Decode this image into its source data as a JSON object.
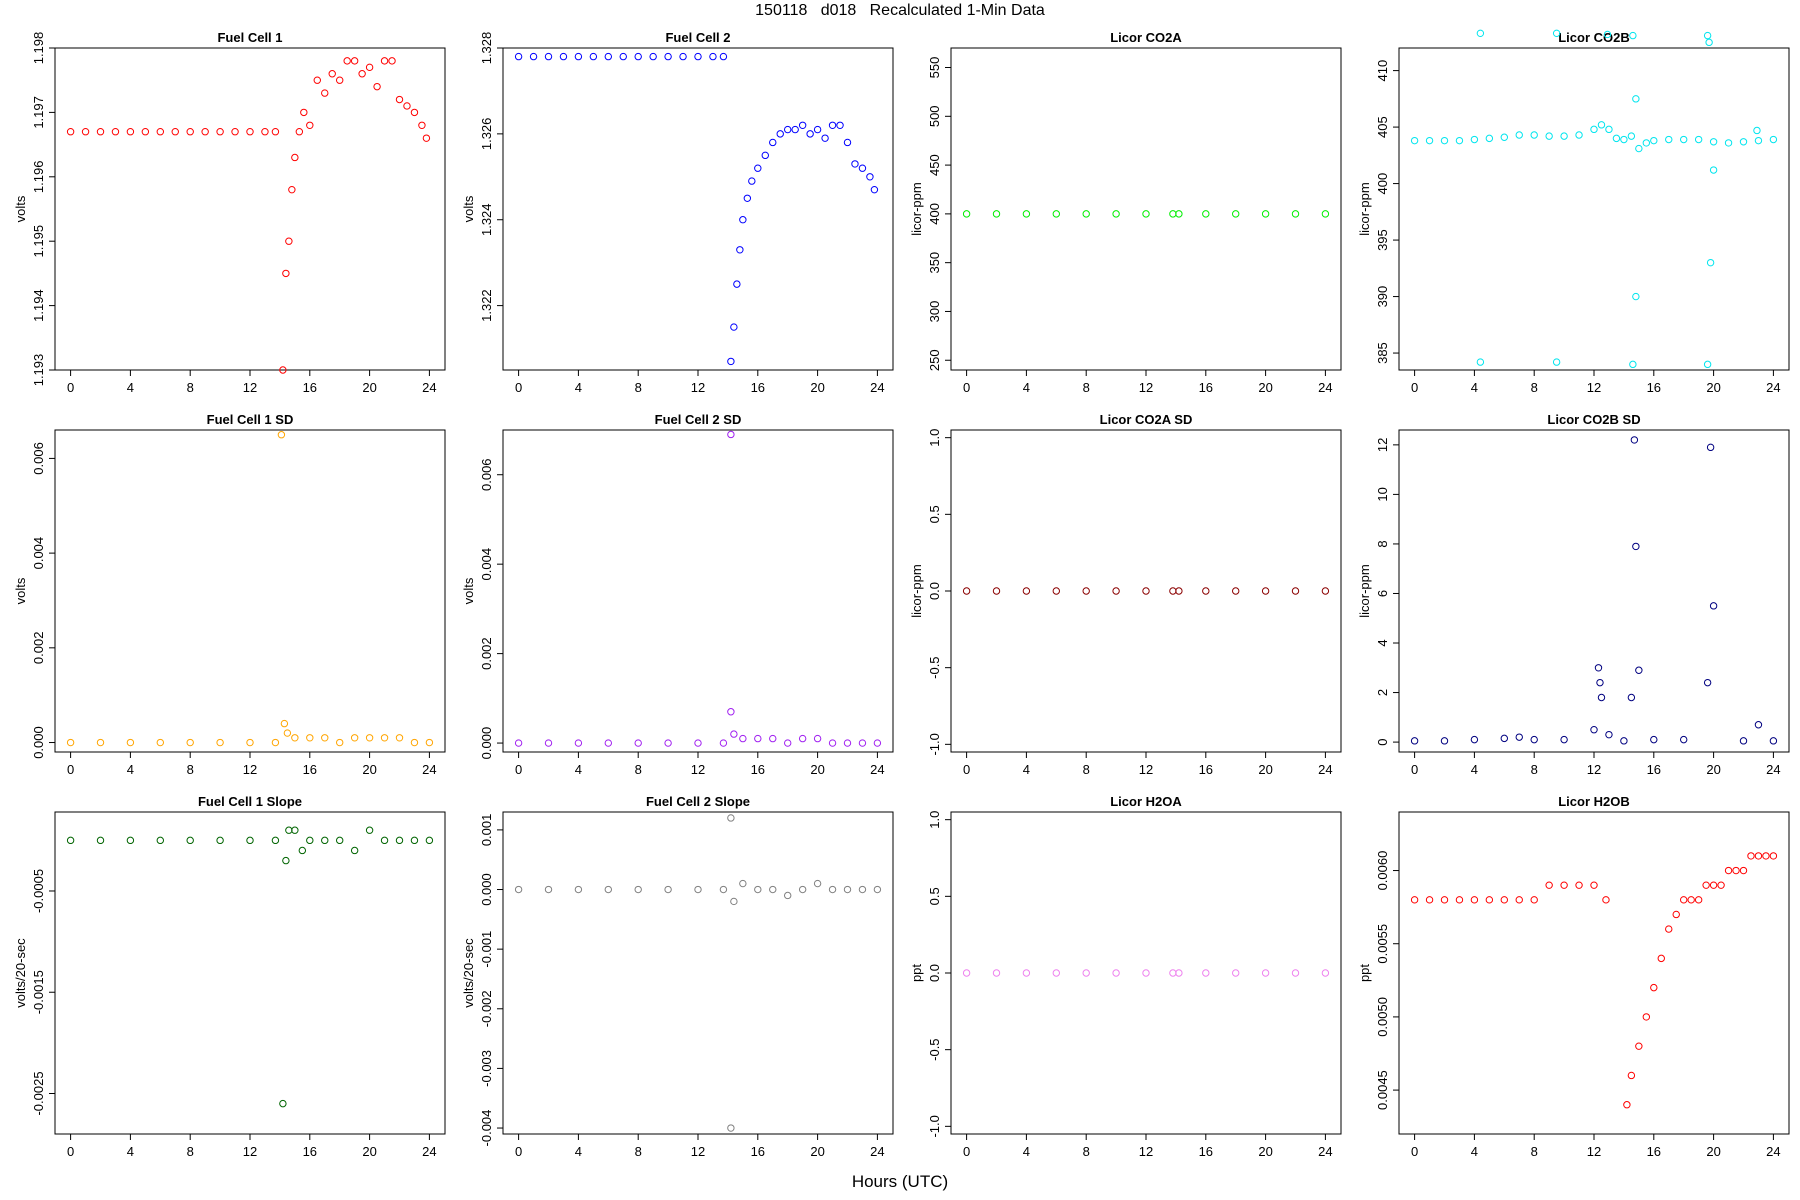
{
  "figure": {
    "title": "150118   d018   Recalculated 1-Min Data",
    "xlabel": "Hours (UTC)"
  },
  "chart_data": [
    {
      "type": "scatter",
      "title": "Fuel Cell 1",
      "xlabel": "",
      "ylabel": "volts",
      "xlim": [
        0,
        24
      ],
      "ylim": [
        1.193,
        1.198
      ],
      "xticks": [
        "0",
        "4",
        "8",
        "12",
        "16",
        "20",
        "24"
      ],
      "yticks": [
        "1.193",
        "1.194",
        "1.195",
        "1.196",
        "1.197",
        "1.198"
      ],
      "color": "#ff0000",
      "series": [
        {
          "x": [
            0,
            1,
            2,
            3,
            4,
            5,
            6,
            7,
            8,
            9,
            10,
            11,
            12,
            13,
            13.7,
            14.2,
            14.4,
            14.6,
            14.8,
            15.0,
            15.3,
            15.6,
            16.0,
            16.5,
            17.0,
            17.5,
            18.0,
            18.5,
            19.0,
            19.5,
            20.0,
            20.5,
            21.0,
            21.5,
            22.0,
            22.5,
            23.0,
            23.5,
            23.8
          ],
          "y": [
            1.1967,
            1.1967,
            1.1967,
            1.1967,
            1.1967,
            1.1967,
            1.1967,
            1.1967,
            1.1967,
            1.1967,
            1.1967,
            1.1967,
            1.1967,
            1.1967,
            1.1967,
            1.193,
            1.1945,
            1.195,
            1.1958,
            1.1963,
            1.1967,
            1.197,
            1.1968,
            1.1975,
            1.1973,
            1.1976,
            1.1975,
            1.1978,
            1.1978,
            1.1976,
            1.1977,
            1.1974,
            1.1978,
            1.1978,
            1.1972,
            1.1971,
            1.197,
            1.1968,
            1.1966
          ]
        }
      ]
    },
    {
      "type": "scatter",
      "title": "Fuel Cell 2",
      "xlabel": "",
      "ylabel": "volts",
      "xlim": [
        0,
        24
      ],
      "ylim": [
        1.3205,
        1.328
      ],
      "xticks": [
        "0",
        "4",
        "8",
        "12",
        "16",
        "20",
        "24"
      ],
      "yticks": [
        "1.322",
        "1.324",
        "1.326",
        "1.328"
      ],
      "color": "#0000ff",
      "series": [
        {
          "x": [
            0,
            1,
            2,
            3,
            4,
            5,
            6,
            7,
            8,
            9,
            10,
            11,
            12,
            13,
            13.7,
            14.2,
            14.4,
            14.6,
            14.8,
            15.0,
            15.3,
            15.6,
            16.0,
            16.5,
            17.0,
            17.5,
            18.0,
            18.5,
            19.0,
            19.5,
            20.0,
            20.5,
            21.0,
            21.5,
            22.0,
            22.5,
            23.0,
            23.5,
            23.8
          ],
          "y": [
            1.3278,
            1.3278,
            1.3278,
            1.3278,
            1.3278,
            1.3278,
            1.3278,
            1.3278,
            1.3278,
            1.3278,
            1.3278,
            1.3278,
            1.3278,
            1.3278,
            1.3278,
            1.3207,
            1.3215,
            1.3225,
            1.3233,
            1.324,
            1.3245,
            1.3249,
            1.3252,
            1.3255,
            1.3258,
            1.326,
            1.3261,
            1.3261,
            1.3262,
            1.326,
            1.3261,
            1.3259,
            1.3262,
            1.3262,
            1.3258,
            1.3253,
            1.3252,
            1.325,
            1.3247
          ]
        }
      ]
    },
    {
      "type": "scatter",
      "title": "Licor CO2A",
      "xlabel": "",
      "ylabel": "licor-ppm",
      "xlim": [
        0,
        24
      ],
      "ylim": [
        240,
        570
      ],
      "xticks": [
        "0",
        "4",
        "8",
        "12",
        "16",
        "20",
        "24"
      ],
      "yticks": [
        "250",
        "300",
        "350",
        "400",
        "450",
        "500",
        "550"
      ],
      "color": "#00ee00",
      "series": [
        {
          "x": [
            0,
            2,
            4,
            6,
            8,
            10,
            12,
            13.8,
            14.2,
            16,
            18,
            20,
            22,
            24
          ],
          "y": [
            400,
            400,
            400,
            400,
            400,
            400,
            400,
            400,
            400,
            400,
            400,
            400,
            400,
            400
          ]
        }
      ]
    },
    {
      "type": "scatter",
      "title": "Licor CO2B",
      "xlabel": "",
      "ylabel": "licor-ppm",
      "xlim": [
        0,
        24
      ],
      "ylim": [
        383.5,
        412
      ],
      "xticks": [
        "0",
        "4",
        "8",
        "12",
        "16",
        "20",
        "24"
      ],
      "yticks": [
        "385",
        "390",
        "395",
        "400",
        "405",
        "410"
      ],
      "color": "#00e5ee",
      "series": [
        {
          "x": [
            0,
            1,
            2,
            3,
            4,
            5,
            6,
            7,
            8,
            9,
            10,
            11,
            12,
            12.5,
            13,
            13.5,
            14,
            14.5,
            15,
            15.5,
            16,
            17,
            18,
            19,
            20,
            21,
            22,
            23,
            24,
            4.4,
            4.4,
            9.5,
            9.5,
            12.9,
            14.6,
            14.6,
            14.8,
            14.8,
            19.6,
            19.6,
            19.7,
            19.8,
            20.0,
            22.9
          ],
          "y": [
            403.8,
            403.8,
            403.8,
            403.8,
            403.9,
            404.0,
            404.1,
            404.3,
            404.3,
            404.2,
            404.2,
            404.3,
            404.8,
            405.2,
            404.8,
            404.0,
            403.9,
            404.2,
            403.1,
            403.6,
            403.8,
            403.9,
            403.9,
            403.9,
            403.7,
            403.6,
            403.7,
            403.8,
            403.9,
            413.3,
            384.2,
            413.3,
            384.2,
            413.2,
            413.1,
            384.0,
            407.5,
            390.0,
            413.1,
            384.0,
            412.5,
            393.0,
            401.2,
            404.7
          ]
        }
      ]
    },
    {
      "type": "scatter",
      "title": "Fuel Cell 1 SD",
      "xlabel": "",
      "ylabel": "volts",
      "xlim": [
        0,
        24
      ],
      "ylim": [
        -0.0002,
        0.0066
      ],
      "xticks": [
        "0",
        "4",
        "8",
        "12",
        "16",
        "20",
        "24"
      ],
      "yticks": [
        "0.000",
        "0.002",
        "0.004",
        "0.006"
      ],
      "color": "#ffa500",
      "series": [
        {
          "x": [
            0,
            2,
            4,
            6,
            8,
            10,
            12,
            13.7,
            14.1,
            14.3,
            14.5,
            15,
            16,
            17,
            18,
            19,
            20,
            21,
            22,
            23,
            24
          ],
          "y": [
            0.0,
            0.0,
            0.0,
            0.0,
            0.0,
            0.0,
            0.0,
            0.0,
            0.0065,
            0.0004,
            0.0002,
            0.0001,
            0.0001,
            0.0001,
            0.0,
            0.0001,
            0.0001,
            0.0001,
            0.0001,
            0.0,
            0.0
          ]
        }
      ]
    },
    {
      "type": "scatter",
      "title": "Fuel Cell 2 SD",
      "xlabel": "",
      "ylabel": "volts",
      "xlim": [
        0,
        24
      ],
      "ylim": [
        -0.0002,
        0.007
      ],
      "xticks": [
        "0",
        "4",
        "8",
        "12",
        "16",
        "20",
        "24"
      ],
      "yticks": [
        "0.000",
        "0.002",
        "0.004",
        "0.006"
      ],
      "color": "#a020f0",
      "series": [
        {
          "x": [
            0,
            2,
            4,
            6,
            8,
            10,
            12,
            13.7,
            14.2,
            14.2,
            14.4,
            15,
            16,
            17,
            18,
            19,
            20,
            21,
            22,
            23,
            24
          ],
          "y": [
            0.0,
            0.0,
            0.0,
            0.0,
            0.0,
            0.0,
            0.0,
            0.0,
            0.0069,
            0.0007,
            0.0002,
            0.0001,
            0.0001,
            0.0001,
            0.0,
            0.0001,
            0.0001,
            0.0,
            0.0,
            0.0,
            0.0
          ]
        }
      ]
    },
    {
      "type": "scatter",
      "title": "Licor CO2A SD",
      "xlabel": "",
      "ylabel": "licor-ppm",
      "xlim": [
        0,
        24
      ],
      "ylim": [
        -1.05,
        1.05
      ],
      "xticks": [
        "0",
        "4",
        "8",
        "12",
        "16",
        "20",
        "24"
      ],
      "yticks": [
        "-1.0",
        "-0.5",
        "0.0",
        "0.5",
        "1.0"
      ],
      "color": "#8b0000",
      "series": [
        {
          "x": [
            0,
            2,
            4,
            6,
            8,
            10,
            12,
            13.8,
            14.2,
            16,
            18,
            20,
            22,
            24
          ],
          "y": [
            0,
            0,
            0,
            0,
            0,
            0,
            0,
            0,
            0,
            0,
            0,
            0,
            0,
            0
          ]
        }
      ]
    },
    {
      "type": "scatter",
      "title": "Licor CO2B SD",
      "xlabel": "",
      "ylabel": "licor-ppm",
      "xlim": [
        0,
        24
      ],
      "ylim": [
        -0.4,
        12.6
      ],
      "xticks": [
        "0",
        "4",
        "8",
        "12",
        "16",
        "20",
        "24"
      ],
      "yticks": [
        "0",
        "2",
        "4",
        "6",
        "8",
        "10",
        "12"
      ],
      "color": "#000080",
      "series": [
        {
          "x": [
            0,
            2,
            4,
            6,
            7,
            8,
            10,
            12,
            12.3,
            12.4,
            12.5,
            13,
            14,
            14.5,
            14.7,
            14.8,
            15,
            16,
            18,
            19.6,
            19.8,
            20,
            22,
            23,
            24
          ],
          "y": [
            0.05,
            0.05,
            0.1,
            0.15,
            0.2,
            0.1,
            0.1,
            0.5,
            3.0,
            2.4,
            1.8,
            0.3,
            0.05,
            1.8,
            12.2,
            7.9,
            2.9,
            0.1,
            0.1,
            2.4,
            11.9,
            5.5,
            0.05,
            0.7,
            0.05
          ]
        }
      ]
    },
    {
      "type": "scatter",
      "title": "Fuel Cell 1 Slope",
      "xlabel": "",
      "ylabel": "volts/20-sec",
      "xlim": [
        0,
        24
      ],
      "ylim": [
        -0.0029,
        0.00028
      ],
      "xticks": [
        "0",
        "4",
        "8",
        "12",
        "16",
        "20",
        "24"
      ],
      "yticks": [
        "-0.0025",
        "-0.0015",
        "-0.0005"
      ],
      "color": "#006400",
      "series": [
        {
          "x": [
            0,
            2,
            4,
            6,
            8,
            10,
            12,
            13.7,
            14.2,
            14.4,
            14.6,
            15,
            15.5,
            16,
            17,
            18,
            19,
            20,
            21,
            22,
            23,
            24
          ],
          "y": [
            0.0,
            0.0,
            0.0,
            0.0,
            0.0,
            0.0,
            0.0,
            0.0,
            -0.0026,
            -0.0002,
            0.0001,
            0.0001,
            -0.0001,
            0.0,
            0.0,
            0.0,
            -0.0001,
            0.0001,
            0.0,
            0.0,
            0.0,
            0.0
          ]
        }
      ]
    },
    {
      "type": "scatter",
      "title": "Fuel Cell 2 Slope",
      "xlabel": "",
      "ylabel": "volts/20-sec",
      "xlim": [
        0,
        24
      ],
      "ylim": [
        -0.0041,
        0.0013
      ],
      "xticks": [
        "0",
        "4",
        "8",
        "12",
        "16",
        "20",
        "24"
      ],
      "yticks": [
        "-0.004",
        "-0.003",
        "-0.002",
        "-0.001",
        "0.000",
        "0.001"
      ],
      "color": "#808080",
      "series": [
        {
          "x": [
            0,
            2,
            4,
            6,
            8,
            10,
            12,
            13.7,
            14.2,
            14.2,
            14.4,
            15,
            16,
            17,
            18,
            19,
            20,
            21,
            22,
            23,
            24
          ],
          "y": [
            0.0,
            0.0,
            0.0,
            0.0,
            0.0,
            0.0,
            0.0,
            0.0,
            0.0012,
            -0.004,
            -0.0002,
            0.0001,
            0.0,
            0.0,
            -0.0001,
            0.0,
            0.0001,
            0.0,
            0.0,
            0.0,
            0.0
          ]
        }
      ]
    },
    {
      "type": "scatter",
      "title": "Licor H2OA",
      "xlabel": "",
      "ylabel": "ppt",
      "xlim": [
        0,
        24
      ],
      "ylim": [
        -1.05,
        1.05
      ],
      "xticks": [
        "0",
        "4",
        "8",
        "12",
        "16",
        "20",
        "24"
      ],
      "yticks": [
        "-1.0",
        "-0.5",
        "0.0",
        "0.5",
        "1.0"
      ],
      "color": "#ee82ee",
      "series": [
        {
          "x": [
            0,
            2,
            4,
            6,
            8,
            10,
            12,
            13.8,
            14.2,
            16,
            18,
            20,
            22,
            24
          ],
          "y": [
            0,
            0,
            0,
            0,
            0,
            0,
            0,
            0,
            0,
            0,
            0,
            0,
            0,
            0
          ]
        }
      ]
    },
    {
      "type": "scatter",
      "title": "Licor H2OB",
      "xlabel": "",
      "ylabel": "ppt",
      "xlim": [
        0,
        24
      ],
      "ylim": [
        0.0042,
        0.0064
      ],
      "xticks": [
        "0",
        "4",
        "8",
        "12",
        "16",
        "20",
        "24"
      ],
      "yticks": [
        "0.0045",
        "0.0050",
        "0.0055",
        "0.0060"
      ],
      "color": "#ff0000",
      "series": [
        {
          "x": [
            0,
            1,
            2,
            3,
            4,
            5,
            6,
            7,
            8,
            9,
            10,
            11,
            12,
            12.8,
            14.2,
            14.5,
            15,
            15.5,
            16,
            16.5,
            17,
            17.5,
            18,
            18.5,
            19,
            19.5,
            20,
            20.5,
            21,
            21.5,
            22,
            22.5,
            23,
            23.5,
            24
          ],
          "y": [
            0.0058,
            0.0058,
            0.0058,
            0.0058,
            0.0058,
            0.0058,
            0.0058,
            0.0058,
            0.0058,
            0.0059,
            0.0059,
            0.0059,
            0.0059,
            0.0058,
            0.0044,
            0.0046,
            0.0048,
            0.005,
            0.0052,
            0.0054,
            0.0056,
            0.0057,
            0.0058,
            0.0058,
            0.0058,
            0.0059,
            0.0059,
            0.0059,
            0.006,
            0.006,
            0.006,
            0.0061,
            0.0061,
            0.0061,
            0.0061
          ]
        }
      ]
    }
  ]
}
